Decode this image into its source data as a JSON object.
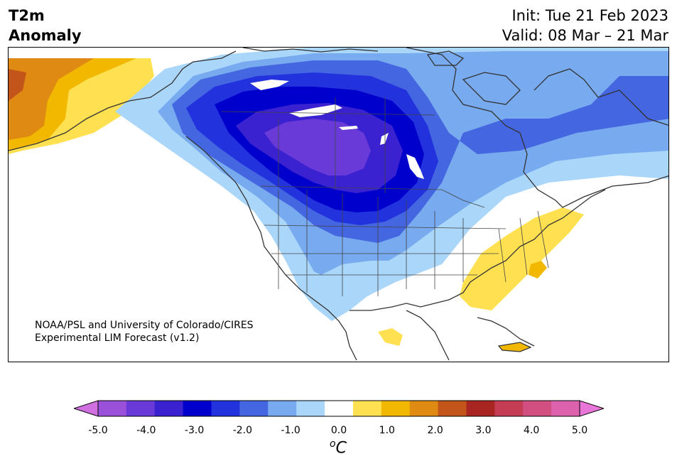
{
  "title": {
    "line1": "T2m",
    "line2": "Anomaly"
  },
  "dates": {
    "init": "Init: Tue 21 Feb 2023",
    "valid": "Valid: 08 Mar – 21 Mar"
  },
  "credit": {
    "line1": "NOAA/PSL and University of Colorado/CIRES",
    "line2": "Experimental LIM Forecast (v1.2)"
  },
  "legend": {
    "unit_sup": "o",
    "unit_main": "C",
    "colors": [
      "#d070e0",
      "#9a50d8",
      "#6a3ad8",
      "#3a22d0",
      "#0000cc",
      "#2233dd",
      "#4466e0",
      "#77aaee",
      "#aad6fa",
      "#ffffff",
      "#ffe050",
      "#f2b800",
      "#df8a12",
      "#c4551a",
      "#a82522",
      "#c43d55",
      "#d24f82",
      "#dc62ae",
      "#e876d8"
    ],
    "tick_labels": [
      "-5.0",
      "-4.0",
      "-3.0",
      "-2.0",
      "-1.0",
      "0.0",
      "1.0",
      "2.0",
      "3.0",
      "4.0",
      "5.0"
    ]
  }
}
